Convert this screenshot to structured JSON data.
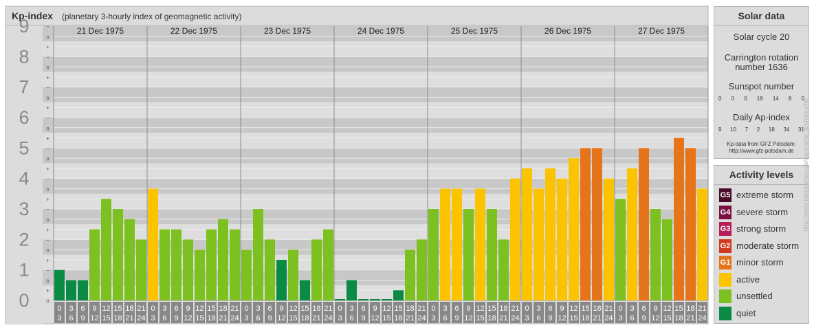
{
  "header": {
    "title": "Kp-index",
    "subtitle": "(planetary 3-hourly index of geomagnetic activity)"
  },
  "chart_data": {
    "type": "bar",
    "title": "Kp-index",
    "subtitle": "(planetary 3-hourly index of geomagnetic activity)",
    "ylim": [
      0,
      9
    ],
    "y_ticks": [
      "0",
      "1",
      "2",
      "3",
      "4",
      "5",
      "6",
      "7",
      "8",
      "9"
    ],
    "y_minor_ticks": [
      "+",
      "o",
      "−"
    ],
    "days": [
      "21 Dec 1975",
      "22 Dec 1975",
      "23 Dec 1975",
      "24 Dec 1975",
      "25 Dec 1975",
      "26 Dec 1975",
      "27 Dec 1975"
    ],
    "interval_starts": [
      "0",
      "3",
      "6",
      "9",
      "12",
      "15",
      "18",
      "21"
    ],
    "interval_ends": [
      "3",
      "6",
      "9",
      "12",
      "15",
      "18",
      "21",
      "24"
    ],
    "values": [
      [
        1.0,
        0.667,
        0.667,
        2.333,
        3.333,
        3.0,
        2.667,
        2.0
      ],
      [
        3.667,
        2.333,
        2.333,
        2.0,
        1.667,
        2.333,
        2.667,
        2.333
      ],
      [
        1.667,
        3.0,
        2.0,
        1.333,
        1.667,
        0.667,
        2.0,
        2.333
      ],
      [
        0.0,
        0.667,
        0.0,
        0.0,
        0.0,
        0.333,
        1.667,
        2.0
      ],
      [
        3.0,
        3.667,
        3.667,
        3.0,
        3.667,
        3.0,
        2.0,
        4.0
      ],
      [
        4.333,
        3.667,
        4.333,
        4.0,
        4.667,
        5.0,
        5.0,
        4.0
      ],
      [
        3.333,
        4.333,
        5.0,
        3.0,
        2.667,
        5.333,
        5.0,
        3.667
      ]
    ],
    "grid": true
  },
  "colors": {
    "quiet": "#0b8a45",
    "unsettled": "#7cc11f",
    "active": "#fbc300",
    "minor_storm": "#e5741b",
    "moderate_storm": "#d1391e",
    "strong_storm": "#b51e58",
    "severe_storm": "#7a1042",
    "extreme_storm": "#4a0a27",
    "band_dark": "#c8c8c8",
    "band_light": "#dedede",
    "panel": "#dcdcdc",
    "border": "#b4b4b4",
    "axis_number": "#8a8a8a",
    "tick_box": "#888888"
  },
  "solar": {
    "title": "Solar data",
    "cycle": "Solar cycle 20",
    "carrington_line1": "Carrington rotation",
    "carrington_line2": "number 1636",
    "sunspot_label": "Sunspot number",
    "sunspot_values": [
      "0",
      "0",
      "0",
      "18",
      "14",
      "8",
      "0"
    ],
    "ap_label": "Daily Ap-index",
    "ap_values": [
      "9",
      "10",
      "7",
      "2",
      "18",
      "34",
      "31"
    ],
    "source_line1": "Kp-data from GFZ Potsdam:",
    "source_line2": "http://www.gfz-potsdam.de"
  },
  "activity": {
    "title": "Activity levels",
    "levels": [
      {
        "badge": "G5",
        "label": "extreme storm",
        "color": "#4a0a27"
      },
      {
        "badge": "G4",
        "label": "severe storm",
        "color": "#7a1042"
      },
      {
        "badge": "G3",
        "label": "strong storm",
        "color": "#b51e58"
      },
      {
        "badge": "G2",
        "label": "moderate storm",
        "color": "#d1391e"
      },
      {
        "badge": "G1",
        "label": "minor storm",
        "color": "#e5741b"
      },
      {
        "badge": "",
        "label": "active",
        "color": "#fbc300"
      },
      {
        "badge": "",
        "label": "unsettled",
        "color": "#7cc11f"
      },
      {
        "badge": "",
        "label": "quiet",
        "color": "#0b8a45"
      }
    ]
  },
  "watermark": "http://www.tierstrahlen.de/aurora/kp_archive.php"
}
